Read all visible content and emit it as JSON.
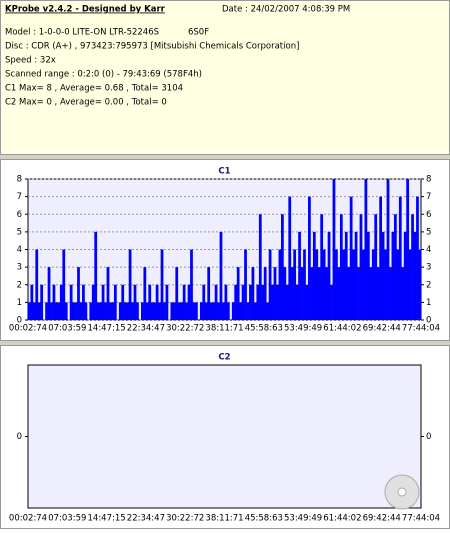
{
  "header": {
    "title": "KProbe v2.4.2 - Designed by Karr",
    "date": "Date : 24/02/2007 4:08:39 PM",
    "model": "Model : 1-0-0-0 LITE-ON LTR-52246S",
    "firmware": "6S0F",
    "lines": [
      "Disc : CDR (A+) , 973423:795973 [Mitsubishi Chemicals Corporation]",
      "Speed : 32x",
      "Scanned range : 0:2:0 (0) - 79:43:69 (578F4h)",
      "C1 Max= 8 , Average= 0.68 , Total= 3104",
      "C2 Max= 0 , Average= 0.00 , Total= 0"
    ]
  },
  "chart_data": [
    {
      "type": "bar",
      "title": "C1",
      "color": "#0000ff",
      "ylim": [
        0,
        8
      ],
      "yticks": [
        0,
        1,
        2,
        3,
        4,
        5,
        6,
        7,
        8
      ],
      "grid": true,
      "x_labels": [
        "00:02:74",
        "07:03:59",
        "14:47:15",
        "22:34:47",
        "30:22:72",
        "38:11:71",
        "45:58:63",
        "53:49:49",
        "61:44:02",
        "69:42:44",
        "77:44:04"
      ],
      "values": [
        1,
        2,
        1,
        4,
        1,
        2,
        0,
        1,
        3,
        1,
        2,
        1,
        1,
        2,
        4,
        1,
        0,
        2,
        1,
        1,
        3,
        1,
        2,
        1,
        0,
        1,
        2,
        5,
        1,
        1,
        2,
        1,
        3,
        1,
        1,
        2,
        0,
        1,
        2,
        1,
        1,
        4,
        1,
        2,
        1,
        0,
        1,
        3,
        1,
        2,
        1,
        1,
        2,
        1,
        4,
        1,
        2,
        0,
        1,
        1,
        3,
        1,
        1,
        2,
        1,
        2,
        4,
        1,
        1,
        0,
        1,
        2,
        1,
        3,
        1,
        1,
        2,
        1,
        5,
        1,
        2,
        1,
        0,
        1,
        2,
        3,
        1,
        2,
        4,
        1,
        2,
        3,
        1,
        2,
        6,
        2,
        3,
        1,
        4,
        2,
        3,
        2,
        4,
        6,
        3,
        2,
        7,
        3,
        4,
        2,
        5,
        3,
        4,
        2,
        7,
        3,
        5,
        4,
        3,
        6,
        4,
        3,
        5,
        2,
        8,
        4,
        3,
        6,
        4,
        5,
        3,
        7,
        4,
        5,
        3,
        6,
        4,
        8,
        5,
        3,
        4,
        6,
        3,
        7,
        5,
        4,
        8,
        3,
        5,
        6,
        4,
        7,
        3,
        5,
        8,
        4,
        6,
        5,
        7,
        4
      ]
    },
    {
      "type": "bar",
      "title": "C2",
      "color": "#0000ff",
      "ylim": [
        -1,
        1
      ],
      "yticks": [
        0
      ],
      "grid": false,
      "x_labels": [
        "00:02:74",
        "07:03:59",
        "14:47:15",
        "22:34:47",
        "30:22:72",
        "38:11:71",
        "45:58:63",
        "53:49:49",
        "61:44:02",
        "69:42:44",
        "77:44:04"
      ],
      "values": []
    }
  ]
}
